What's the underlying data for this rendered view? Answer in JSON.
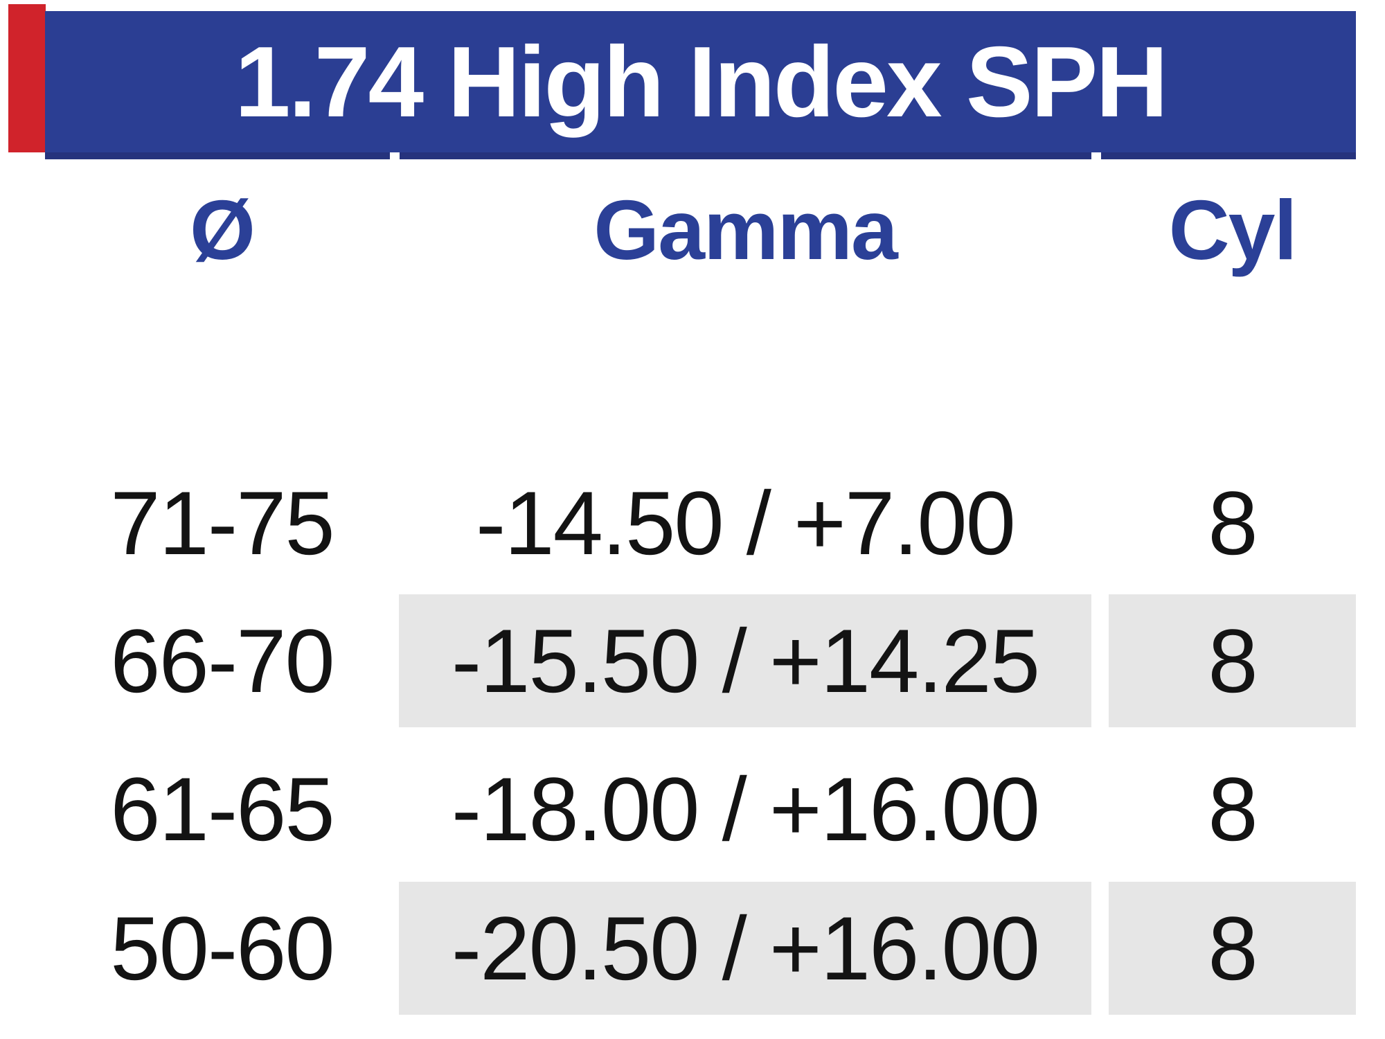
{
  "banner": {
    "title": "1.74 High Index SPH"
  },
  "table": {
    "columns": [
      {
        "label": "Ø"
      },
      {
        "label": "Gamma"
      },
      {
        "label": "Cyl"
      }
    ],
    "rows": [
      {
        "diameter": "71-75",
        "gamma": "-14.50 / +7.00",
        "cyl": "8",
        "highlighted": false
      },
      {
        "diameter": "66-70",
        "gamma": "-15.50 / +14.25",
        "cyl": "8",
        "highlighted": true
      },
      {
        "diameter": "61-65",
        "gamma": "-18.00 / +16.00",
        "cyl": "8",
        "highlighted": false
      },
      {
        "diameter": "50-60",
        "gamma": "-20.50 / +16.00",
        "cyl": "8",
        "highlighted": true
      }
    ]
  },
  "colors": {
    "banner_blue": "#2b3e93",
    "banner_edge_blue": "#26337d",
    "header_text_blue": "#2b4097",
    "row_highlight_gray": "#e6e6e6",
    "accent_red": "#d0232b",
    "body_text": "#131313",
    "banner_text": "#ffffff"
  }
}
